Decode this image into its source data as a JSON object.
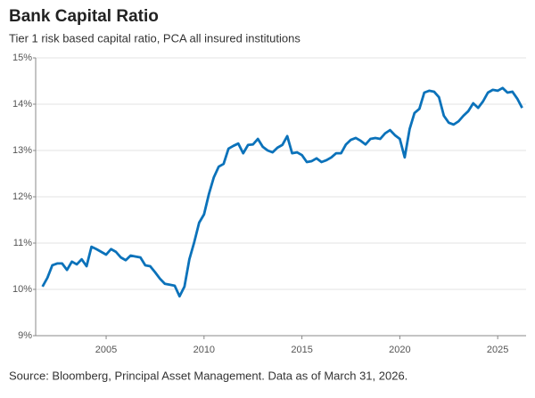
{
  "chart_data": {
    "type": "line",
    "title": "Bank Capital Ratio",
    "subtitle": "Tier 1 risk based capital ratio, PCA all insured institutions",
    "source": "Source: Bloomberg, Principal Asset Management. Data as of March 31, 2026.",
    "x": [
      2001.75,
      2002,
      2002.25,
      2002.5,
      2002.75,
      2003,
      2003.25,
      2003.5,
      2003.75,
      2004,
      2004.25,
      2004.5,
      2004.75,
      2005,
      2005.25,
      2005.5,
      2005.75,
      2006,
      2006.25,
      2006.5,
      2006.75,
      2007,
      2007.25,
      2007.5,
      2007.75,
      2008,
      2008.25,
      2008.5,
      2008.75,
      2009,
      2009.25,
      2009.5,
      2009.75,
      2010,
      2010.25,
      2010.5,
      2010.75,
      2011,
      2011.25,
      2011.5,
      2011.75,
      2012,
      2012.25,
      2012.5,
      2012.75,
      2013,
      2013.25,
      2013.5,
      2013.75,
      2014,
      2014.25,
      2014.5,
      2014.75,
      2015,
      2015.25,
      2015.5,
      2015.75,
      2016,
      2016.25,
      2016.5,
      2016.75,
      2017,
      2017.25,
      2017.5,
      2017.75,
      2018,
      2018.25,
      2018.5,
      2018.75,
      2019,
      2019.25,
      2019.5,
      2019.75,
      2020,
      2020.25,
      2020.5,
      2020.75,
      2021,
      2021.25,
      2021.5,
      2021.75,
      2022,
      2022.25,
      2022.5,
      2022.75,
      2023,
      2023.25,
      2023.5,
      2023.75,
      2024,
      2024.25,
      2024.5,
      2024.75,
      2025,
      2025.25,
      2025.5,
      2025.75,
      2026,
      2026.25
    ],
    "series": [
      {
        "name": "Tier 1 risk based capital ratio",
        "color": "#0b72ba",
        "values": [
          10.06,
          10.25,
          10.52,
          10.56,
          10.56,
          10.42,
          10.6,
          10.54,
          10.65,
          10.5,
          10.92,
          10.87,
          10.81,
          10.75,
          10.87,
          10.81,
          10.69,
          10.63,
          10.73,
          10.71,
          10.69,
          10.52,
          10.5,
          10.37,
          10.23,
          10.12,
          10.1,
          10.08,
          9.85,
          10.06,
          10.65,
          11.02,
          11.44,
          11.62,
          12.06,
          12.42,
          12.65,
          12.71,
          13.04,
          13.1,
          13.15,
          12.94,
          13.12,
          13.13,
          13.25,
          13.08,
          13.0,
          12.96,
          13.06,
          13.12,
          13.31,
          12.94,
          12.96,
          12.9,
          12.75,
          12.77,
          12.83,
          12.75,
          12.79,
          12.85,
          12.94,
          12.94,
          13.13,
          13.23,
          13.27,
          13.21,
          13.13,
          13.25,
          13.27,
          13.25,
          13.37,
          13.44,
          13.33,
          13.25,
          12.85,
          13.46,
          13.81,
          13.9,
          14.25,
          14.29,
          14.27,
          14.15,
          13.75,
          13.6,
          13.56,
          13.63,
          13.75,
          13.85,
          14.02,
          13.92,
          14.06,
          14.25,
          14.31,
          14.29,
          14.35,
          14.25,
          14.27,
          14.12,
          13.92
        ]
      }
    ],
    "xlim": [
      2001.4,
      2026.45
    ],
    "xticks": [
      2005,
      2010,
      2015,
      2020,
      2025
    ],
    "ylim": [
      9,
      15
    ],
    "yticks": [
      {
        "value": 9,
        "label": "9%"
      },
      {
        "value": 10,
        "label": "10%"
      },
      {
        "value": 11,
        "label": "11%"
      },
      {
        "value": 12,
        "label": "12%"
      },
      {
        "value": 13,
        "label": "13%"
      },
      {
        "value": 14,
        "label": "14%"
      },
      {
        "value": 15,
        "label": "15%"
      }
    ],
    "grid": true
  }
}
